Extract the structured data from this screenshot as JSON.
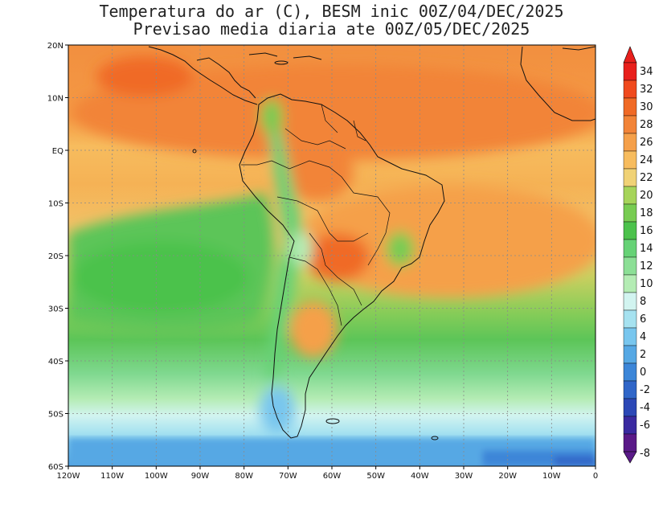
{
  "title": {
    "line1": "Temperatura do ar (C), BESM inic 00Z/04/DEC/2025",
    "line2": "Previsao media diaria ate 00Z/05/DEC/2025"
  },
  "map": {
    "lat_labels": [
      "20N",
      "10N",
      "EQ",
      "10S",
      "20S",
      "30S",
      "40S",
      "50S",
      "60S"
    ],
    "lon_labels": [
      "120W",
      "110W",
      "100W",
      "90W",
      "80W",
      "70W",
      "60W",
      "50W",
      "40W",
      "30W",
      "20W",
      "10W",
      "0"
    ]
  },
  "colorbar": {
    "labels": [
      "34",
      "32",
      "30",
      "28",
      "26",
      "24",
      "22",
      "20",
      "18",
      "16",
      "14",
      "12",
      "10",
      "8",
      "6",
      "4",
      "2",
      "0",
      "-2",
      "-4",
      "-6",
      "-8"
    ],
    "colors": [
      "#e8201c",
      "#f04a1e",
      "#f06a26",
      "#f28438",
      "#f5a04a",
      "#f7bc5e",
      "#f0d276",
      "#a6d45a",
      "#78cc52",
      "#4cc24c",
      "#66d276",
      "#8cdf96",
      "#b4ecb4",
      "#d2f4f0",
      "#a6e2f0",
      "#78c6ee",
      "#56a8e4",
      "#3c86d8",
      "#3066c8",
      "#2c48b6",
      "#3a2aa0",
      "#5a1a88"
    ]
  }
}
